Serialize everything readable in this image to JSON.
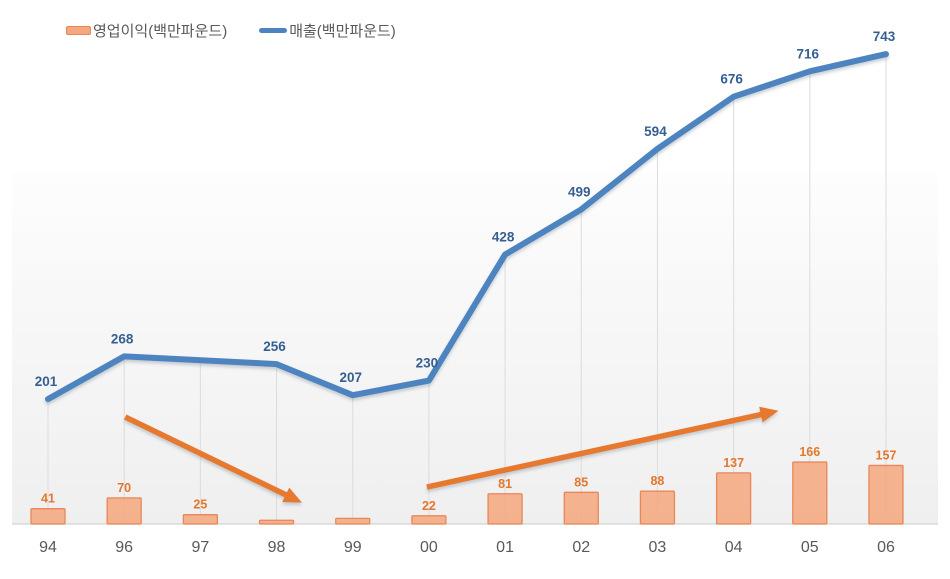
{
  "legend": {
    "bar_label": "영업이익(백만파운드)",
    "line_label": "매출(백만파운드)"
  },
  "colors": {
    "bar_fill": "#f5a87f",
    "bar_border": "#e8875a",
    "bar_label": "#e2772e",
    "line": "#4d84c0",
    "line_label": "#365f91",
    "arrow": "#e6792f",
    "axis_label": "#595959",
    "gridline": "#dcdcdc",
    "axis_line": "#d4d4d4",
    "plot_bg_top": "#fdfdfd",
    "plot_bg_bottom": "#efefef"
  },
  "chart_data": {
    "type": "combo",
    "title": "",
    "categories": [
      "94",
      "96",
      "97",
      "98",
      "99",
      "00",
      "01",
      "02",
      "03",
      "04",
      "05",
      "06"
    ],
    "series": [
      {
        "name": "영업이익(백만파운드)",
        "type": "bar",
        "values": [
          41,
          70,
          25,
          10,
          15,
          22,
          81,
          85,
          88,
          137,
          166,
          157
        ],
        "labels": [
          "41",
          "70",
          "25",
          "",
          "",
          "22",
          "81",
          "85",
          "88",
          "137",
          "166",
          "157"
        ]
      },
      {
        "name": "매출(백만파운드)",
        "type": "line",
        "values": [
          201,
          268,
          null,
          256,
          207,
          230,
          428,
          499,
          594,
          676,
          716,
          743
        ],
        "labels": [
          "201",
          "268",
          "",
          "256",
          "207",
          "230",
          "428",
          "499",
          "594",
          "676",
          "716",
          "743"
        ]
      }
    ],
    "annotations": [
      {
        "type": "trend-arrow",
        "direction": "down",
        "from_category": "96",
        "to_category": "98"
      },
      {
        "type": "trend-arrow",
        "direction": "up",
        "from_category": "00",
        "to_category": "04"
      }
    ],
    "legend_position": "top-left",
    "grid": "vertical-droplines",
    "y_axis": "hidden",
    "x_axis": "visible"
  }
}
